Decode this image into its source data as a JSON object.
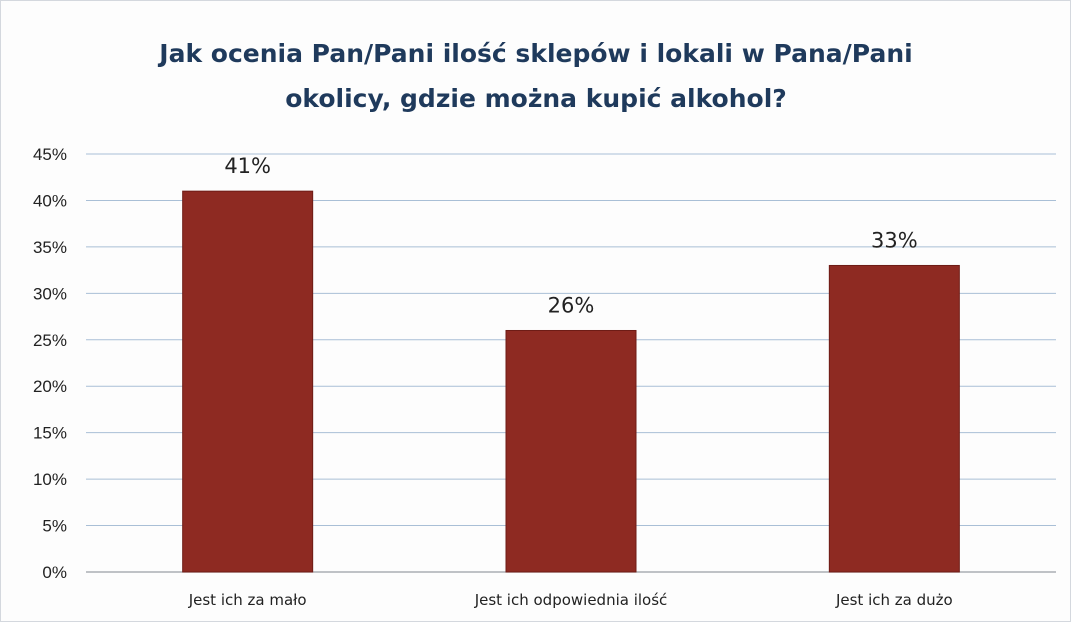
{
  "chart_data": {
    "type": "bar",
    "title_lines": [
      "Jak ocenia Pan/Pani ilość sklepów i lokali w Pana/Pani",
      "okolicy, gdzie można kupić alkohol?"
    ],
    "categories": [
      "Jest ich za mało",
      "Jest ich odpowiednia ilość",
      "Jest ich za dużo"
    ],
    "values": [
      41,
      26,
      33
    ],
    "data_labels": [
      "41%",
      "26%",
      "33%"
    ],
    "ylim": [
      0,
      45
    ],
    "yticks": [
      0,
      5,
      10,
      15,
      20,
      25,
      30,
      35,
      40,
      45
    ],
    "ytick_labels": [
      "0%",
      "5%",
      "10%",
      "15%",
      "20%",
      "25%",
      "30%",
      "35%",
      "40%",
      "45%"
    ],
    "xlabel": "",
    "ylabel": "",
    "grid": true,
    "legend": "none",
    "colors": {
      "bar": "#8e2a22",
      "bar_edge": "#6e1c16",
      "grid": "#a9bfd6",
      "axis": "#9aa0a6",
      "title": "#1f3a5c"
    }
  }
}
